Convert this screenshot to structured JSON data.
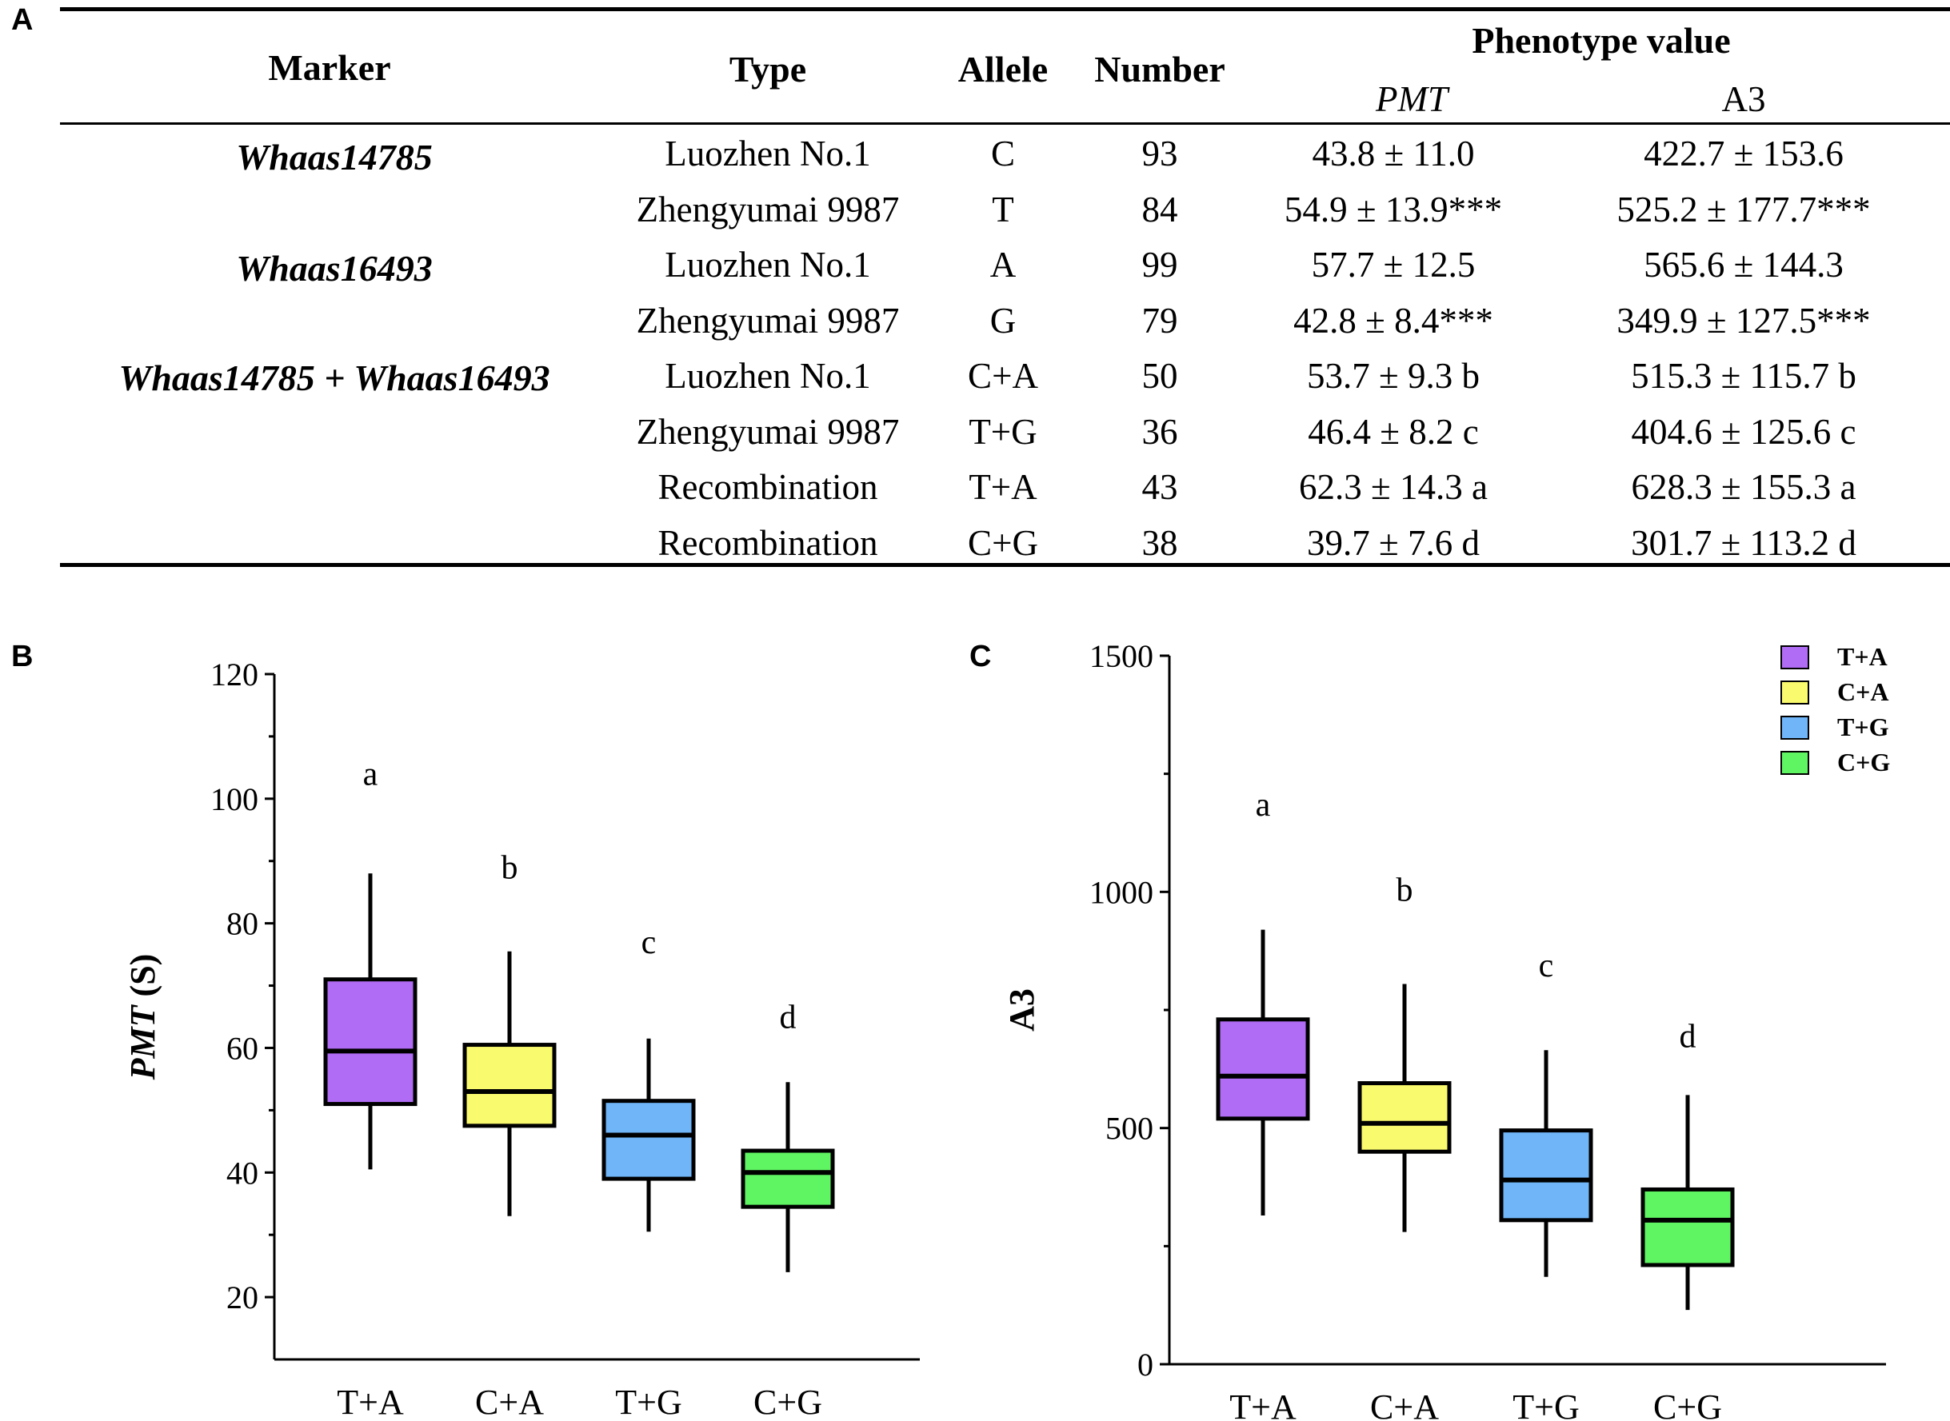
{
  "panel_labels": {
    "a": "A",
    "b": "B",
    "c": "C"
  },
  "table": {
    "headers": {
      "marker": "Marker",
      "type": "Type",
      "allele": "Allele",
      "number": "Number",
      "phenotype": "Phenotype value",
      "pmt": "PMT",
      "a3": "A3"
    },
    "markers": [
      "Whaas14785",
      "Whaas16493",
      "Whaas14785 + Whaas16493"
    ],
    "rows": [
      {
        "type": "Luozhen No.1",
        "allele": "C",
        "number": "93",
        "pmt": "43.8 ± 11.0",
        "a3": "422.7 ± 153.6"
      },
      {
        "type": "Zhengyumai 9987",
        "allele": "T",
        "number": "84",
        "pmt": "54.9 ± 13.9***",
        "a3": "525.2 ± 177.7***"
      },
      {
        "type": "Luozhen No.1",
        "allele": "A",
        "number": "99",
        "pmt": "57.7 ± 12.5",
        "a3": "565.6 ± 144.3"
      },
      {
        "type": "Zhengyumai 9987",
        "allele": "G",
        "number": "79",
        "pmt": "42.8 ± 8.4***",
        "a3": "349.9 ± 127.5***"
      },
      {
        "type": "Luozhen No.1",
        "allele": "C+A",
        "number": "50",
        "pmt": "53.7 ± 9.3 b",
        "a3": "515.3 ± 115.7 b"
      },
      {
        "type": "Zhengyumai 9987",
        "allele": "T+G",
        "number": "36",
        "pmt": "46.4 ± 8.2 c",
        "a3": "404.6 ± 125.6 c"
      },
      {
        "type": "Recombination",
        "allele": "T+A",
        "number": "43",
        "pmt": "62.3 ± 14.3 a",
        "a3": "628.3 ± 155.3 a"
      },
      {
        "type": "Recombination",
        "allele": "C+G",
        "number": "38",
        "pmt": "39.7 ± 7.6 d",
        "a3": "301.7 ± 113.2 d"
      }
    ]
  },
  "chart_data": [
    {
      "type": "boxplot",
      "panel": "B",
      "ylabel_italic": "PMT",
      "ylabel_rest": " (S)",
      "ylim": [
        10,
        120
      ],
      "yticks": [
        20,
        40,
        60,
        80,
        100,
        120
      ],
      "categories": [
        "T+A",
        "C+A",
        "T+G",
        "C+G"
      ],
      "colors": [
        "#b06cf5",
        "#fafa6e",
        "#6fb5f7",
        "#5ff562"
      ],
      "boxes": [
        {
          "min": 40.5,
          "q1": 51.0,
          "median": 59.5,
          "q3": 71.0,
          "max": 88.0
        },
        {
          "min": 33.0,
          "q1": 47.5,
          "median": 53.0,
          "q3": 60.5,
          "max": 75.5
        },
        {
          "min": 30.5,
          "q1": 39.0,
          "median": 46.0,
          "q3": 51.5,
          "max": 61.5
        },
        {
          "min": 24.0,
          "q1": 34.5,
          "median": 40.0,
          "q3": 43.5,
          "max": 54.5
        }
      ],
      "letters": [
        {
          "text": "a",
          "y": 104
        },
        {
          "text": "b",
          "y": 89
        },
        {
          "text": "c",
          "y": 77
        },
        {
          "text": "d",
          "y": 65
        }
      ]
    },
    {
      "type": "boxplot",
      "panel": "C",
      "ylabel": "A3",
      "ylim": [
        0,
        1500
      ],
      "yticks": [
        0,
        500,
        1000,
        1500
      ],
      "categories": [
        "T+A",
        "C+A",
        "T+G",
        "C+G"
      ],
      "colors": [
        "#b06cf5",
        "#fafa6e",
        "#6fb5f7",
        "#5ff562"
      ],
      "boxes": [
        {
          "min": 315,
          "q1": 520,
          "median": 610,
          "q3": 730,
          "max": 920
        },
        {
          "min": 280,
          "q1": 450,
          "median": 510,
          "q3": 595,
          "max": 805
        },
        {
          "min": 185,
          "q1": 305,
          "median": 390,
          "q3": 495,
          "max": 665
        },
        {
          "min": 115,
          "q1": 210,
          "median": 305,
          "q3": 370,
          "max": 570
        }
      ],
      "letters": [
        {
          "text": "a",
          "y": 1185
        },
        {
          "text": "b",
          "y": 1005
        },
        {
          "text": "c",
          "y": 845
        },
        {
          "text": "d",
          "y": 695
        }
      ],
      "legend": {
        "position": "top-right",
        "entries": [
          "T+A",
          "C+A",
          "T+G",
          "C+G"
        ]
      }
    }
  ]
}
